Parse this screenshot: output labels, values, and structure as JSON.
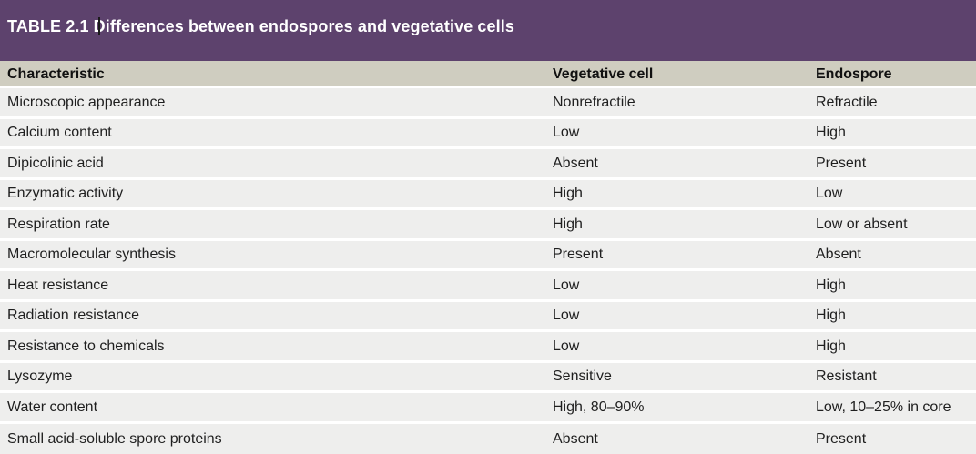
{
  "title": {
    "before_cursor": "TABLE 2.1 D",
    "after_cursor": "ifferences between endospores and vegetative cells"
  },
  "table": {
    "headers": [
      "Characteristic",
      "Vegetative cell",
      "Endospore"
    ],
    "rows": [
      [
        "Microscopic appearance",
        "Nonrefractile",
        "Refractile"
      ],
      [
        "Calcium content",
        "Low",
        "High"
      ],
      [
        "Dipicolinic acid",
        "Absent",
        "Present"
      ],
      [
        "Enzymatic activity",
        "High",
        "Low"
      ],
      [
        "Respiration rate",
        "High",
        "Low or absent"
      ],
      [
        "Macromolecular synthesis",
        "Present",
        "Absent"
      ],
      [
        "Heat resistance",
        "Low",
        "High"
      ],
      [
        "Radiation resistance",
        "Low",
        "High"
      ],
      [
        "Resistance to chemicals",
        "Low",
        "High"
      ],
      [
        "Lysozyme",
        "Sensitive",
        "Resistant"
      ],
      [
        "Water content",
        "High, 80–90%",
        "Low, 10–25% in core"
      ],
      [
        "Small acid-soluble spore proteins",
        "Absent",
        "Present"
      ]
    ]
  },
  "colors": {
    "title_bar": "#5d426d",
    "header_row": "#cfcdc0",
    "body_row": "#eeeeed"
  }
}
